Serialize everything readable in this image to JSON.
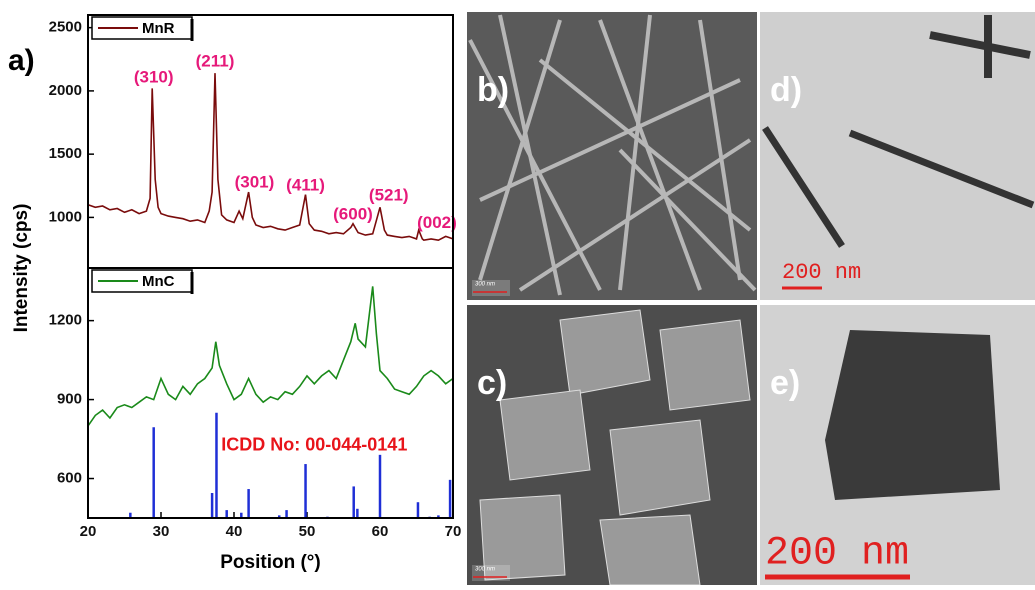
{
  "figure_label": "a)",
  "chart_data": [
    {
      "type": "line",
      "ylabel": "Intensity (cps)",
      "legend": "upper left",
      "xlim": [
        20,
        70
      ],
      "ylim": [
        600,
        2600
      ],
      "yticks": [
        1000,
        1500,
        2000,
        2500
      ],
      "series": [
        {
          "name": "MnR",
          "color": "#7a0c0c",
          "x": [
            20,
            21,
            22,
            23,
            24,
            25,
            26,
            27,
            28,
            28.5,
            28.8,
            29.2,
            29.6,
            30,
            31,
            32,
            33,
            34,
            35,
            36,
            36.6,
            37,
            37.4,
            37.8,
            38.3,
            39,
            40,
            40.7,
            41.2,
            42,
            42.5,
            43,
            44,
            45,
            46,
            47,
            48,
            49,
            49.8,
            50.3,
            51,
            52,
            53,
            54,
            55,
            56,
            56.3,
            57,
            58,
            59,
            60,
            60.6,
            61,
            62,
            63,
            64,
            65,
            65.3,
            65.8,
            66,
            67,
            68,
            69,
            70
          ],
          "values": [
            1100,
            1080,
            1090,
            1060,
            1070,
            1040,
            1060,
            1030,
            1050,
            1150,
            2020,
            1300,
            1080,
            1030,
            1010,
            1000,
            990,
            970,
            980,
            960,
            1050,
            1200,
            2140,
            1300,
            1020,
            980,
            960,
            1050,
            990,
            1200,
            1000,
            940,
            920,
            930,
            910,
            900,
            920,
            940,
            1180,
            950,
            900,
            890,
            870,
            880,
            870,
            920,
            950,
            880,
            860,
            870,
            1080,
            900,
            860,
            850,
            840,
            850,
            830,
            900,
            830,
            820,
            830,
            820,
            850,
            830
          ]
        }
      ],
      "annotations": [
        {
          "text": "(310)",
          "x": 29,
          "y": 2100
        },
        {
          "text": "(211)",
          "x": 37.4,
          "y": 2230
        },
        {
          "text": "(301)",
          "x": 42.8,
          "y": 1270
        },
        {
          "text": "(411)",
          "x": 49.8,
          "y": 1250
        },
        {
          "text": "(600)",
          "x": 56.3,
          "y": 1020
        },
        {
          "text": "(521)",
          "x": 61.2,
          "y": 1170
        },
        {
          "text": "(002)",
          "x": 67.8,
          "y": 950
        }
      ]
    },
    {
      "type": "line",
      "xlabel": "Position (°)",
      "legend": "upper left",
      "xlim": [
        20,
        70
      ],
      "ylim": [
        450,
        1400
      ],
      "xticks": [
        20,
        30,
        40,
        50,
        60,
        70
      ],
      "yticks": [
        600,
        900,
        1200
      ],
      "series": [
        {
          "name": "MnC",
          "color": "#1a8a1a",
          "x": [
            20,
            21,
            22,
            23,
            24,
            25,
            26,
            27,
            28,
            29,
            30,
            31,
            32,
            33,
            34,
            35,
            36,
            37,
            37.5,
            38,
            39,
            40,
            41,
            42,
            43,
            44,
            45,
            46,
            47,
            48,
            49,
            50,
            51,
            52,
            53,
            54,
            55,
            56,
            56.6,
            57,
            58,
            59,
            59.5,
            60,
            61,
            62,
            63,
            64,
            65,
            66,
            67,
            68,
            69,
            70
          ],
          "values": [
            800,
            840,
            860,
            830,
            870,
            880,
            870,
            890,
            910,
            900,
            980,
            920,
            900,
            950,
            920,
            960,
            980,
            1020,
            1120,
            1030,
            960,
            900,
            920,
            980,
            920,
            890,
            910,
            900,
            930,
            920,
            950,
            990,
            960,
            990,
            1010,
            980,
            1050,
            1120,
            1190,
            1130,
            1100,
            1330,
            1150,
            1010,
            980,
            940,
            930,
            920,
            950,
            990,
            1010,
            990,
            960,
            980
          ]
        },
        {
          "kind": "stick",
          "color": "#1f2fd6",
          "x": [
            25.8,
            29,
            37,
            37.6,
            39,
            41,
            42,
            46.2,
            47.2,
            49.8,
            52.8,
            56.4,
            56.9,
            60,
            65.2,
            66.8,
            68,
            69.6
          ],
          "values": [
            470,
            795,
            545,
            850,
            480,
            470,
            560,
            460,
            480,
            655,
            455,
            570,
            485,
            690,
            510,
            455,
            460,
            595
          ]
        }
      ],
      "annotations": [
        {
          "text": "ICDD No: 00-044-0141",
          "x": 51,
          "y": 725,
          "color": "#e8141a"
        }
      ]
    }
  ],
  "panels": [
    {
      "label": "b)",
      "scale_bar": "300 nm"
    },
    {
      "label": "d)",
      "scale_bar": "200 nm"
    },
    {
      "label": "c)",
      "scale_bar": "300 nm"
    },
    {
      "label": "e)",
      "scale_bar": "200 nm"
    }
  ]
}
